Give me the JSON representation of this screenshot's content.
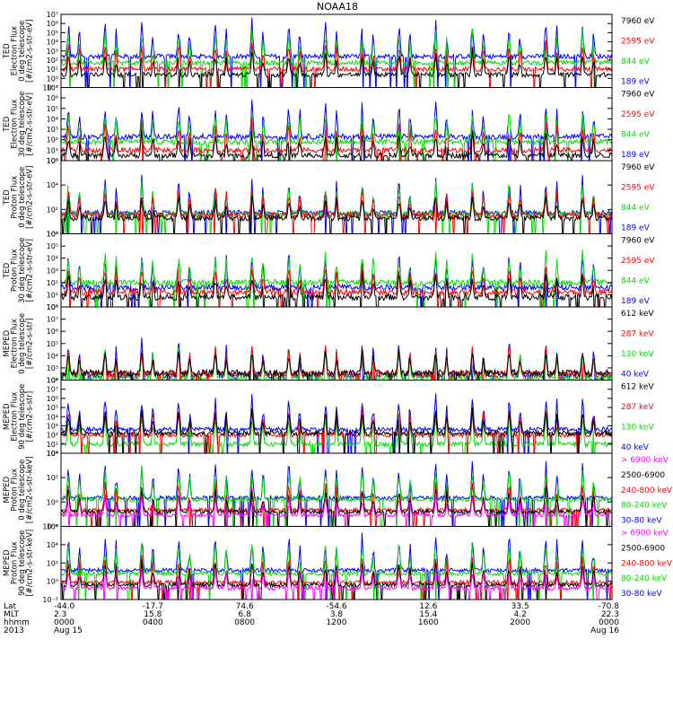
{
  "title": "NOAA18",
  "colors": {
    "blue": "#0000ff",
    "red": "#ff0000",
    "green": "#00dd00",
    "black": "#000000",
    "magenta": "#ff00ff",
    "frame": "#000000"
  },
  "chart_data": [
    {
      "type": "line",
      "scale": "log",
      "ylabel_lines": [
        "TED",
        "Electron Flux",
        "0 deg telescope",
        "[#/cm2-s-str-eV]"
      ],
      "ylim": [
        0.1,
        10000000
      ],
      "y_ticks": [
        "10⁻¹",
        "10⁰",
        "10¹",
        "10²",
        "10³",
        "10⁴",
        "10⁵",
        "10⁶",
        "10⁷"
      ],
      "series": [
        {
          "name": "7960 eV",
          "color": "black",
          "baseline_log": 0.4
        },
        {
          "name": "2595 eV",
          "color": "red",
          "baseline_log": 1.0
        },
        {
          "name": "844 eV",
          "color": "green",
          "baseline_log": 1.7
        },
        {
          "name": "189 eV",
          "color": "blue",
          "baseline_log": 2.4
        }
      ]
    },
    {
      "type": "line",
      "scale": "log",
      "ylabel_lines": [
        "TED",
        "Electron Flux",
        "30 deg telescope",
        "[#/cm2-s-str-eV]"
      ],
      "ylim": [
        1,
        10000000
      ],
      "y_ticks": [
        "10⁰",
        "10¹",
        "10²",
        "10³",
        "10⁴",
        "10⁵",
        "10⁶",
        "10⁷"
      ],
      "series": [
        {
          "name": "7960 eV",
          "color": "black",
          "baseline_log": 0.5
        },
        {
          "name": "2595 eV",
          "color": "red",
          "baseline_log": 1.0
        },
        {
          "name": "844 eV",
          "color": "green",
          "baseline_log": 1.8
        },
        {
          "name": "189 eV",
          "color": "blue",
          "baseline_log": 2.3
        }
      ]
    },
    {
      "type": "line",
      "scale": "log",
      "ylabel_lines": [
        "TED",
        "Proton Flux",
        "0 deg telescope",
        "[#/cm2-s-str-eV]"
      ],
      "ylim": [
        1,
        10000000
      ],
      "y_ticks": [
        "10⁰",
        "10²",
        "10⁴",
        "10⁶"
      ],
      "series": [
        {
          "name": "7960 eV",
          "color": "black",
          "baseline_log": 1.5
        },
        {
          "name": "2595 eV",
          "color": "red",
          "baseline_log": 1.8
        },
        {
          "name": "844 eV",
          "color": "green",
          "baseline_log": 1.9
        },
        {
          "name": "189 eV",
          "color": "blue",
          "baseline_log": 2.0
        }
      ]
    },
    {
      "type": "line",
      "scale": "log",
      "ylabel_lines": [
        "TED",
        "Proton Flux",
        "30 deg telescope",
        "[#/cm2-s-str-eV]"
      ],
      "ylim": [
        1,
        1000000
      ],
      "y_ticks": [
        "10⁰",
        "10¹",
        "10²",
        "10³",
        "10⁴",
        "10⁵",
        "10⁶"
      ],
      "series": [
        {
          "name": "7960 eV",
          "color": "black",
          "baseline_log": 0.8
        },
        {
          "name": "2595 eV",
          "color": "red",
          "baseline_log": 1.2
        },
        {
          "name": "844 eV",
          "color": "green",
          "baseline_log": 2.0
        },
        {
          "name": "189 eV",
          "color": "blue",
          "baseline_log": 1.6
        }
      ]
    },
    {
      "type": "line",
      "scale": "log",
      "ylabel_lines": [
        "MEPED",
        "Electron Flux",
        "0 deg telescope",
        "[#/cm2-s-str]"
      ],
      "ylim": [
        100,
        100000000
      ],
      "y_ticks": [
        "10²",
        "10³",
        "10⁴",
        "10⁵",
        "10⁶",
        "10⁷",
        "10⁸"
      ],
      "series": [
        {
          "name": "612 keV",
          "color": "black",
          "baseline_log": 2.6
        },
        {
          "name": "287 keV",
          "color": "red",
          "baseline_log": 2.5
        },
        {
          "name": "130 keV",
          "color": "green",
          "baseline_log": 2.2
        },
        {
          "name": "40 keV",
          "color": "blue",
          "baseline_log": 2.4
        }
      ]
    },
    {
      "type": "line",
      "scale": "log",
      "ylabel_lines": [
        "MEPED",
        "Electron Flux",
        "90 deg telescope",
        "[#/cm2-s-str]"
      ],
      "ylim": [
        1,
        100000000
      ],
      "y_ticks": [
        "10⁰",
        "10¹",
        "10²",
        "10³",
        "10⁴",
        "10⁵",
        "10⁶",
        "10⁷",
        "10⁸"
      ],
      "series": [
        {
          "name": "612 keV",
          "color": "black",
          "baseline_log": 2.2
        },
        {
          "name": "287 keV",
          "color": "red",
          "baseline_log": 2.0
        },
        {
          "name": "130 keV",
          "color": "green",
          "baseline_log": 1.0
        },
        {
          "name": "40 keV",
          "color": "blue",
          "baseline_log": 2.6
        }
      ]
    },
    {
      "type": "line",
      "scale": "log",
      "ylabel_lines": [
        "MEPED",
        "Proton Flux",
        "0 deg telescope",
        "[#/cm2-s-str-keV]"
      ],
      "ylim": [
        0.001,
        1000000
      ],
      "y_ticks": [
        "10⁻²",
        "10⁰",
        "10²",
        "10⁴"
      ],
      "series": [
        {
          "name": "> 6900 keV",
          "color": "magenta",
          "baseline_log": -1.6
        },
        {
          "name": "2500-6900",
          "color": "black",
          "baseline_log": -1.2
        },
        {
          "name": "240-800 keV",
          "color": "red",
          "baseline_log": -1.0
        },
        {
          "name": "80-240 keV",
          "color": "green",
          "baseline_log": 0.3
        },
        {
          "name": "30-80 keV",
          "color": "blue",
          "baseline_log": 0.5
        }
      ]
    },
    {
      "type": "line",
      "scale": "log",
      "ylabel_lines": [
        "MEPED",
        "Proton Flux",
        "90 deg telescope",
        "[#/cm2-s-str-keV]"
      ],
      "ylim": [
        0.001,
        1000000
      ],
      "y_ticks": [
        "10⁻²",
        "10⁰",
        "10²",
        "10⁴",
        "10⁶"
      ],
      "series": [
        {
          "name": "> 6900 keV",
          "color": "magenta",
          "baseline_log": -1.6
        },
        {
          "name": "2500-6900",
          "color": "black",
          "baseline_log": -1.2
        },
        {
          "name": "240-800 keV",
          "color": "red",
          "baseline_log": -0.9
        },
        {
          "name": "80-240 keV",
          "color": "green",
          "baseline_log": 0.2
        },
        {
          "name": "30-80 keV",
          "color": "blue",
          "baseline_log": 0.6
        }
      ]
    }
  ],
  "x_axis": {
    "row_labels": [
      "Lat",
      "MLT",
      "hhmm",
      "2013"
    ],
    "ticks": [
      {
        "lat": "-44.0",
        "mlt": "2.3",
        "hhmm": "0000",
        "date": "Aug 15"
      },
      {
        "lat": "-17.7",
        "mlt": "15.8",
        "hhmm": "0400",
        "date": ""
      },
      {
        "lat": "74.6",
        "mlt": "6.8",
        "hhmm": "0800",
        "date": ""
      },
      {
        "lat": "-54.6",
        "mlt": "3.8",
        "hhmm": "1200",
        "date": ""
      },
      {
        "lat": "12.6",
        "mlt": "15.4",
        "hhmm": "1600",
        "date": ""
      },
      {
        "lat": "33.5",
        "mlt": "4.2",
        "hhmm": "2000",
        "date": ""
      },
      {
        "lat": "-70.8",
        "mlt": "22.3",
        "hhmm": "0000",
        "date": "Aug 16"
      }
    ],
    "pass_count": 15
  }
}
